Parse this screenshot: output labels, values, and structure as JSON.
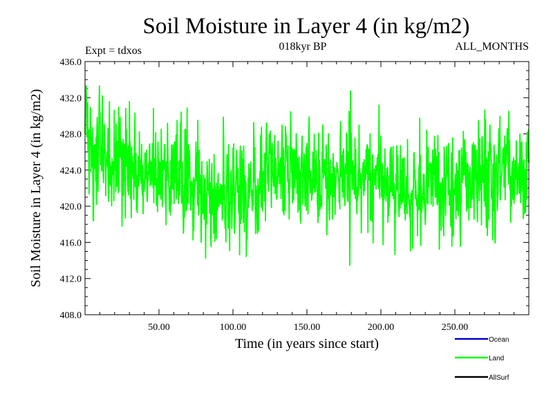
{
  "chart_data": {
    "type": "line",
    "title": "Soil Moisture in Layer 4 (in kg/m2)",
    "subtitle": "018kyr BP",
    "annotations": {
      "left": "Expt = tdxos",
      "right": "ALL_MONTHS"
    },
    "xlabel": "Time (in years since start)",
    "ylabel": "Soil Moisture in Layer 4 (in kg/m2)",
    "xlim": [
      0,
      300
    ],
    "ylim": [
      408,
      436
    ],
    "x_ticks": [
      50,
      100,
      150,
      200,
      250
    ],
    "x_tick_labels": [
      "50.00",
      "100.00",
      "150.00",
      "200.00",
      "250.00"
    ],
    "y_ticks": [
      408,
      412,
      416,
      420,
      424,
      428,
      432,
      436
    ],
    "y_tick_labels": [
      "408.0",
      "412.0",
      "416.0",
      "420.0",
      "424.0",
      "428.0",
      "432.0",
      "436.0"
    ],
    "grid": false,
    "legend_position": "bottom-right",
    "series": [
      {
        "name": "Ocean",
        "color": "#0000cc",
        "values": []
      },
      {
        "name": "Land",
        "color": "#00ff00",
        "x_start": 0,
        "x_step": 0.25,
        "y_range": [
          411.5,
          433.3
        ],
        "values": []
      },
      {
        "name": "AllSurf",
        "color": "#000000",
        "values": []
      }
    ]
  }
}
